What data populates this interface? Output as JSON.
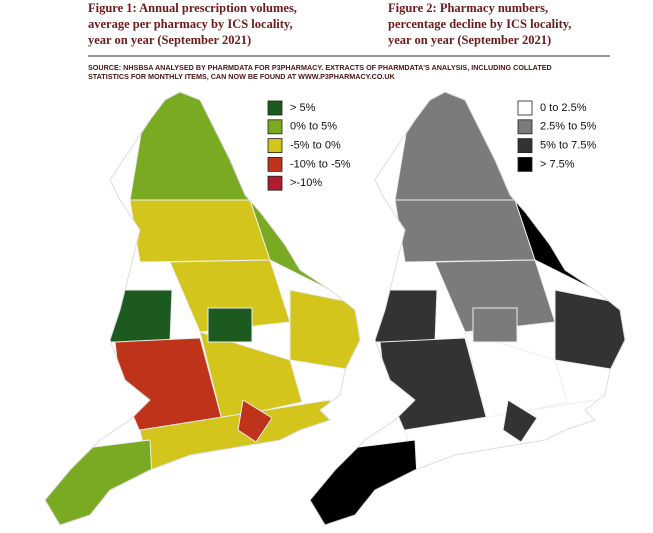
{
  "figure1": {
    "title_lines": [
      "Figure 1: Annual prescription volumes,",
      "average per pharmacy by ICS locality,",
      "year on year (September 2021)"
    ],
    "legend": [
      {
        "label": "> 5%",
        "color": "#1d5a1f"
      },
      {
        "label": "0% to 5%",
        "color": "#7aa922"
      },
      {
        "label": "-5% to 0%",
        "color": "#d3c51c"
      },
      {
        "label": "-10% to -5%",
        "color": "#c0331b"
      },
      {
        "label": ">-10%",
        "color": "#b01c2e"
      }
    ]
  },
  "figure2": {
    "title_lines": [
      "Figure 2: Pharmacy numbers,",
      "percentage decline by ICS locality,",
      "year on year (September 2021)"
    ],
    "legend": [
      {
        "label": "0 to 2.5%",
        "color": "#ffffff"
      },
      {
        "label": "2.5% to 5%",
        "color": "#7b7b7b"
      },
      {
        "label": "5% to 7.5%",
        "color": "#333333"
      },
      {
        "label": "> 7.5%",
        "color": "#000000"
      }
    ]
  },
  "source_lines": [
    "SOURCE: NHSBSA ANALYSED BY PHARMDATA FOR P3PHARMACY. EXTRACTS OF PHARMDATA'S ANALYSIS, INCLUDING COLLATED",
    "STATISTICS FOR MONTHLY ITEMS, CAN NOW BE FOUND AT WWW.P3PHARMACY.CO.UK"
  ]
}
